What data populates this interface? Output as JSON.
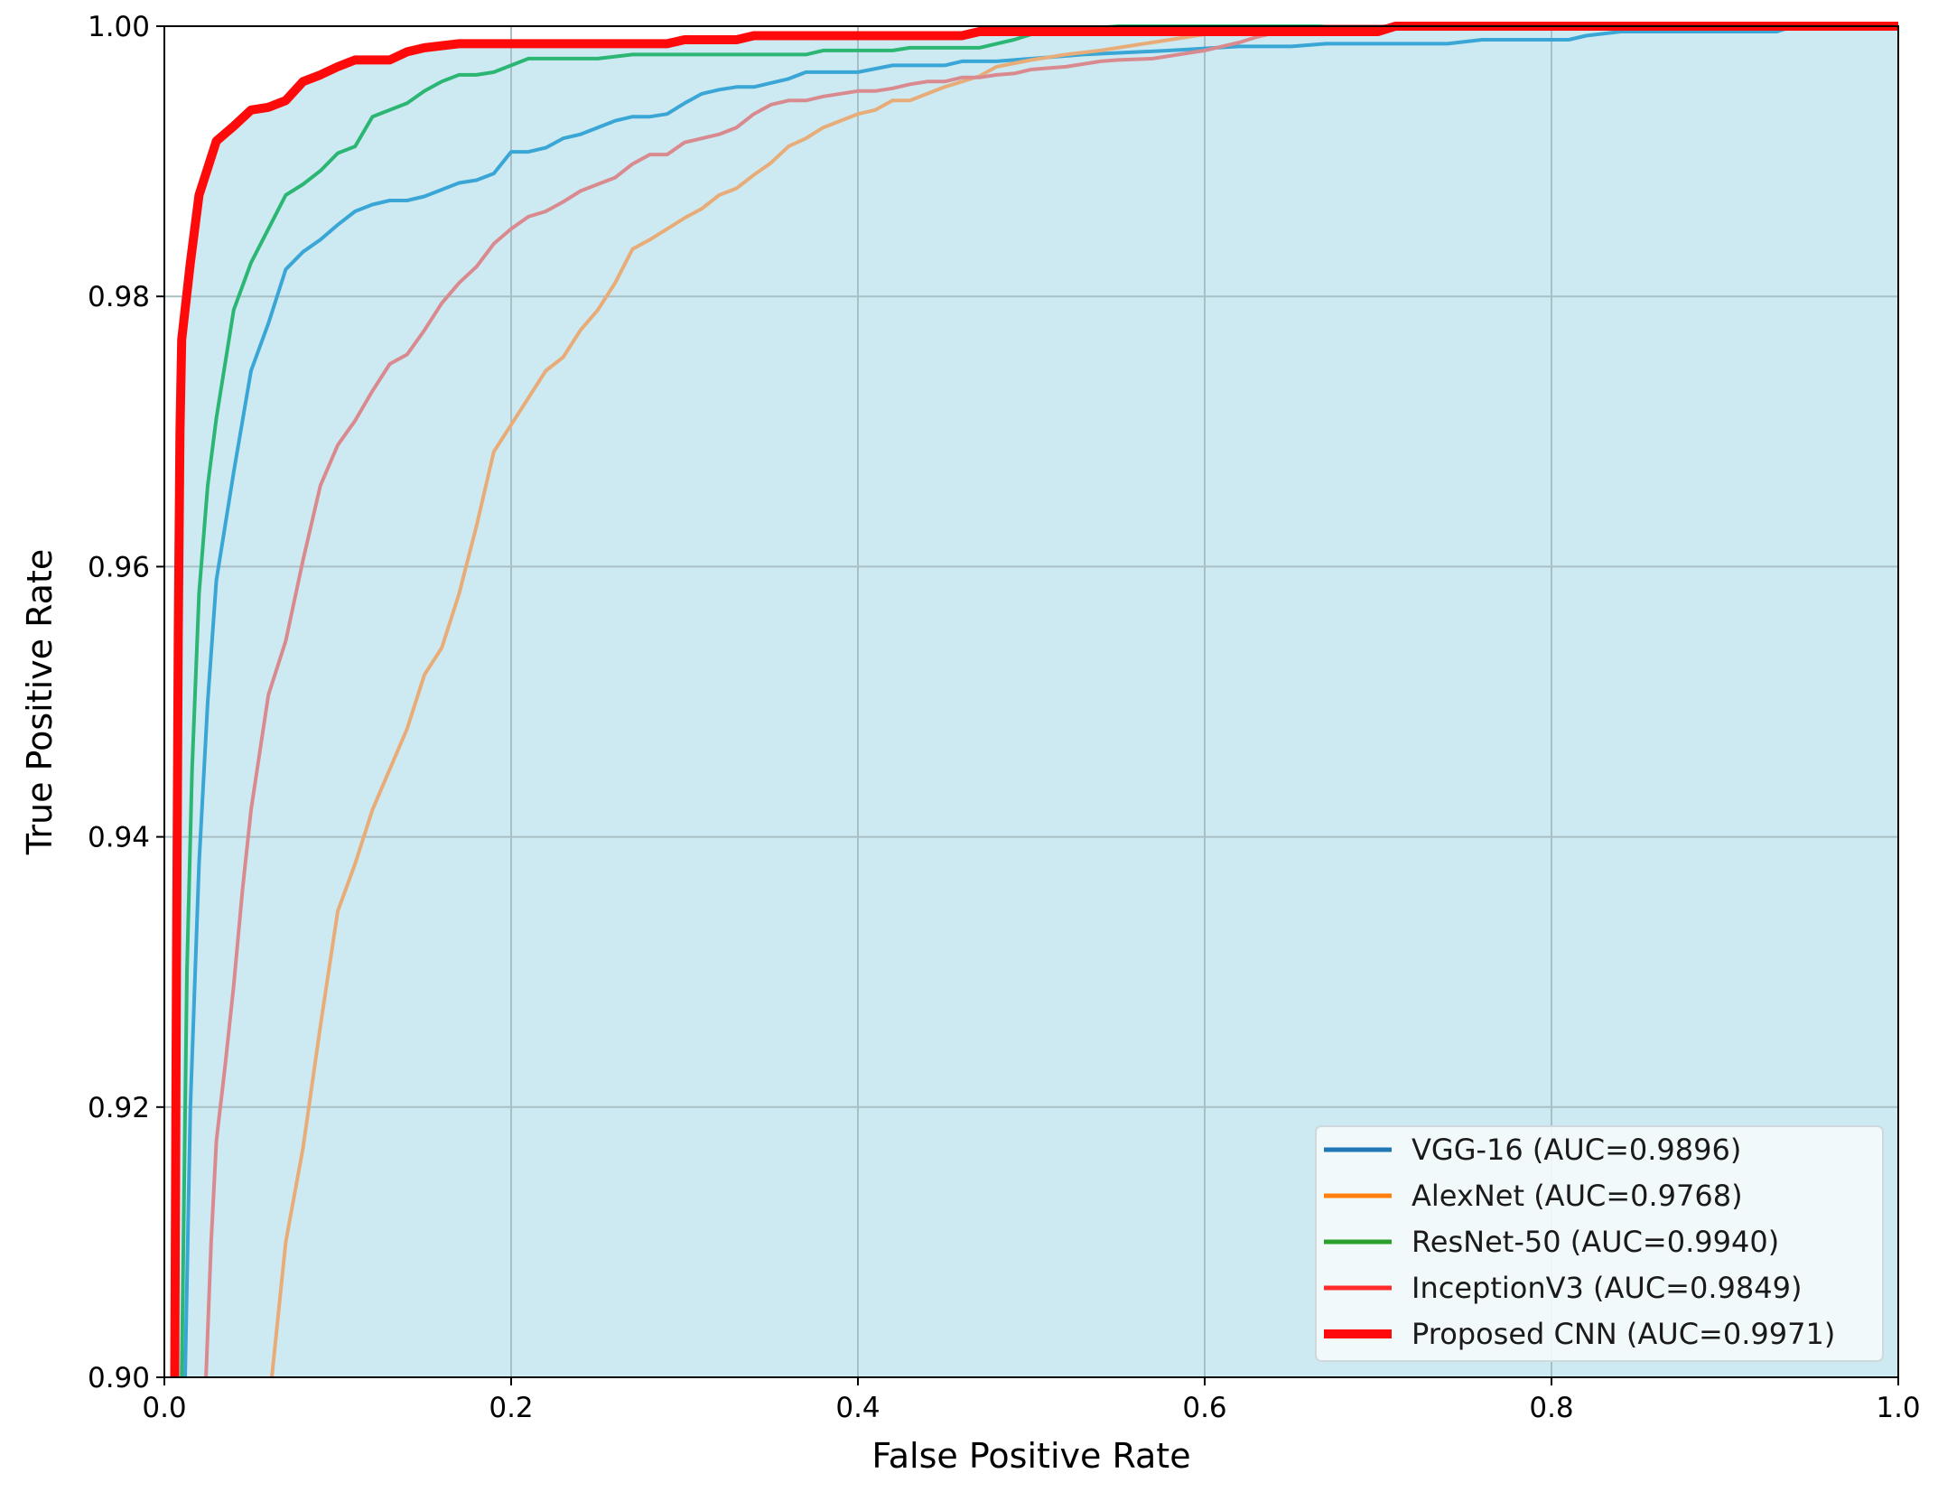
{
  "chart_data": {
    "type": "line",
    "xlabel": "False Positive Rate",
    "ylabel": "True Positive Rate",
    "xlim": [
      0.0,
      1.0
    ],
    "ylim": [
      0.9,
      1.0
    ],
    "xticks": [
      0.0,
      0.2,
      0.4,
      0.6,
      0.8,
      1.0
    ],
    "xtick_labels": [
      "0.0",
      "0.2",
      "0.4",
      "0.6",
      "0.8",
      "1.0"
    ],
    "yticks": [
      0.9,
      0.92,
      0.94,
      0.96,
      0.98,
      1.0
    ],
    "ytick_labels": [
      "0.90",
      "0.92",
      "0.94",
      "0.96",
      "0.98",
      "1.00"
    ],
    "grid": true,
    "legend_position": "lower-right",
    "fill_color": "#cdeaf2",
    "series": [
      {
        "name": "VGG-16 (AUC=0.9896)",
        "color": "#3aa6d6",
        "legend_color": "#1f77b4",
        "width": 4,
        "points": [
          [
            0.012,
            0.9
          ],
          [
            0.015,
            0.92
          ],
          [
            0.02,
            0.938
          ],
          [
            0.025,
            0.95
          ],
          [
            0.03,
            0.959
          ],
          [
            0.04,
            0.967
          ],
          [
            0.05,
            0.9745
          ],
          [
            0.06,
            0.978
          ],
          [
            0.07,
            0.982
          ],
          [
            0.08,
            0.9833
          ],
          [
            0.09,
            0.9842
          ],
          [
            0.1,
            0.9853
          ],
          [
            0.11,
            0.9863
          ],
          [
            0.12,
            0.9868
          ],
          [
            0.13,
            0.9871
          ],
          [
            0.14,
            0.9871
          ],
          [
            0.15,
            0.9874
          ],
          [
            0.16,
            0.9879
          ],
          [
            0.17,
            0.9884
          ],
          [
            0.18,
            0.9886
          ],
          [
            0.19,
            0.9891
          ],
          [
            0.2,
            0.9907
          ],
          [
            0.21,
            0.9907
          ],
          [
            0.22,
            0.991
          ],
          [
            0.23,
            0.9917
          ],
          [
            0.24,
            0.992
          ],
          [
            0.25,
            0.9925
          ],
          [
            0.26,
            0.993
          ],
          [
            0.27,
            0.9933
          ],
          [
            0.28,
            0.9933
          ],
          [
            0.29,
            0.9935
          ],
          [
            0.3,
            0.9943
          ],
          [
            0.31,
            0.995
          ],
          [
            0.32,
            0.9953
          ],
          [
            0.33,
            0.9955
          ],
          [
            0.34,
            0.9955
          ],
          [
            0.35,
            0.9958
          ],
          [
            0.36,
            0.9961
          ],
          [
            0.37,
            0.9966
          ],
          [
            0.4,
            0.9966
          ],
          [
            0.42,
            0.9971
          ],
          [
            0.45,
            0.9971
          ],
          [
            0.46,
            0.9974
          ],
          [
            0.48,
            0.9974
          ],
          [
            0.5,
            0.9976
          ],
          [
            0.53,
            0.9979
          ],
          [
            0.58,
            0.9982
          ],
          [
            0.62,
            0.9985
          ],
          [
            0.65,
            0.9985
          ],
          [
            0.67,
            0.9987
          ],
          [
            0.74,
            0.9987
          ],
          [
            0.76,
            0.999
          ],
          [
            0.81,
            0.999
          ],
          [
            0.82,
            0.9993
          ],
          [
            0.84,
            0.9996
          ],
          [
            0.93,
            0.9996
          ],
          [
            0.94,
            1.0
          ],
          [
            1.0,
            1.0
          ]
        ]
      },
      {
        "name": "AlexNet (AUC=0.9768)",
        "color": "#e8ac78",
        "legend_color": "#ff7f0e",
        "width": 4,
        "points": [
          [
            0.062,
            0.9
          ],
          [
            0.066,
            0.905
          ],
          [
            0.07,
            0.91
          ],
          [
            0.08,
            0.917
          ],
          [
            0.09,
            0.926
          ],
          [
            0.1,
            0.9345
          ],
          [
            0.11,
            0.938
          ],
          [
            0.12,
            0.942
          ],
          [
            0.13,
            0.945
          ],
          [
            0.14,
            0.948
          ],
          [
            0.15,
            0.952
          ],
          [
            0.16,
            0.954
          ],
          [
            0.17,
            0.958
          ],
          [
            0.18,
            0.963
          ],
          [
            0.19,
            0.9685
          ],
          [
            0.2,
            0.9705
          ],
          [
            0.21,
            0.9725
          ],
          [
            0.22,
            0.9745
          ],
          [
            0.23,
            0.9755
          ],
          [
            0.24,
            0.9775
          ],
          [
            0.25,
            0.979
          ],
          [
            0.26,
            0.981
          ],
          [
            0.27,
            0.9835
          ],
          [
            0.28,
            0.9842
          ],
          [
            0.29,
            0.985
          ],
          [
            0.3,
            0.9858
          ],
          [
            0.31,
            0.9865
          ],
          [
            0.32,
            0.9875
          ],
          [
            0.33,
            0.988
          ],
          [
            0.34,
            0.989
          ],
          [
            0.35,
            0.9899
          ],
          [
            0.36,
            0.9911
          ],
          [
            0.37,
            0.9917
          ],
          [
            0.38,
            0.9925
          ],
          [
            0.39,
            0.993
          ],
          [
            0.4,
            0.9935
          ],
          [
            0.41,
            0.9938
          ],
          [
            0.42,
            0.9945
          ],
          [
            0.43,
            0.9945
          ],
          [
            0.44,
            0.995
          ],
          [
            0.45,
            0.9955
          ],
          [
            0.47,
            0.9963
          ],
          [
            0.48,
            0.997
          ],
          [
            0.5,
            0.9975
          ],
          [
            0.52,
            0.9979
          ],
          [
            0.54,
            0.9982
          ],
          [
            0.56,
            0.9986
          ],
          [
            0.58,
            0.999
          ],
          [
            0.6,
            0.9994
          ],
          [
            0.62,
            0.9997
          ],
          [
            0.64,
            1.0
          ],
          [
            1.0,
            1.0
          ]
        ]
      },
      {
        "name": "ResNet-50 (AUC=0.9940)",
        "color": "#2bb673",
        "legend_color": "#2ca02c",
        "width": 4,
        "points": [
          [
            0.01,
            0.9
          ],
          [
            0.013,
            0.93
          ],
          [
            0.016,
            0.945
          ],
          [
            0.02,
            0.958
          ],
          [
            0.025,
            0.966
          ],
          [
            0.03,
            0.971
          ],
          [
            0.04,
            0.979
          ],
          [
            0.05,
            0.9825
          ],
          [
            0.06,
            0.985
          ],
          [
            0.07,
            0.9875
          ],
          [
            0.08,
            0.9883
          ],
          [
            0.09,
            0.9893
          ],
          [
            0.1,
            0.9906
          ],
          [
            0.11,
            0.9911
          ],
          [
            0.12,
            0.9933
          ],
          [
            0.13,
            0.9938
          ],
          [
            0.14,
            0.9943
          ],
          [
            0.15,
            0.9952
          ],
          [
            0.16,
            0.9959
          ],
          [
            0.17,
            0.9964
          ],
          [
            0.18,
            0.9964
          ],
          [
            0.19,
            0.9966
          ],
          [
            0.2,
            0.9971
          ],
          [
            0.21,
            0.9976
          ],
          [
            0.25,
            0.9976
          ],
          [
            0.27,
            0.9979
          ],
          [
            0.37,
            0.9979
          ],
          [
            0.38,
            0.9982
          ],
          [
            0.42,
            0.9982
          ],
          [
            0.43,
            0.9984
          ],
          [
            0.47,
            0.9984
          ],
          [
            0.48,
            0.9987
          ],
          [
            0.49,
            0.999
          ],
          [
            0.5,
            0.9994
          ],
          [
            0.52,
            0.9997
          ],
          [
            0.55,
            1.0
          ],
          [
            1.0,
            1.0
          ]
        ]
      },
      {
        "name": "InceptionV3 (AUC=0.9849)",
        "color": "#d98a8f",
        "legend_color": "#ff2a2a",
        "width": 4,
        "points": [
          [
            0.024,
            0.9
          ],
          [
            0.027,
            0.91
          ],
          [
            0.03,
            0.9175
          ],
          [
            0.035,
            0.923
          ],
          [
            0.04,
            0.929
          ],
          [
            0.045,
            0.936
          ],
          [
            0.05,
            0.942
          ],
          [
            0.06,
            0.9505
          ],
          [
            0.07,
            0.9545
          ],
          [
            0.08,
            0.9605
          ],
          [
            0.09,
            0.966
          ],
          [
            0.1,
            0.969
          ],
          [
            0.11,
            0.9708
          ],
          [
            0.12,
            0.973
          ],
          [
            0.13,
            0.975
          ],
          [
            0.14,
            0.9757
          ],
          [
            0.15,
            0.9775
          ],
          [
            0.16,
            0.9795
          ],
          [
            0.17,
            0.981
          ],
          [
            0.18,
            0.9822
          ],
          [
            0.19,
            0.9839
          ],
          [
            0.2,
            0.985
          ],
          [
            0.21,
            0.9859
          ],
          [
            0.22,
            0.9863
          ],
          [
            0.23,
            0.987
          ],
          [
            0.24,
            0.9878
          ],
          [
            0.25,
            0.9883
          ],
          [
            0.26,
            0.9888
          ],
          [
            0.27,
            0.9898
          ],
          [
            0.28,
            0.9905
          ],
          [
            0.29,
            0.9905
          ],
          [
            0.3,
            0.9914
          ],
          [
            0.31,
            0.9917
          ],
          [
            0.32,
            0.992
          ],
          [
            0.33,
            0.9925
          ],
          [
            0.34,
            0.9935
          ],
          [
            0.35,
            0.9942
          ],
          [
            0.36,
            0.9945
          ],
          [
            0.37,
            0.9945
          ],
          [
            0.38,
            0.9948
          ],
          [
            0.39,
            0.995
          ],
          [
            0.4,
            0.9952
          ],
          [
            0.41,
            0.9952
          ],
          [
            0.42,
            0.9954
          ],
          [
            0.43,
            0.9957
          ],
          [
            0.44,
            0.9959
          ],
          [
            0.45,
            0.9959
          ],
          [
            0.46,
            0.9962
          ],
          [
            0.47,
            0.9962
          ],
          [
            0.48,
            0.9964
          ],
          [
            0.49,
            0.9965
          ],
          [
            0.5,
            0.9968
          ],
          [
            0.51,
            0.9969
          ],
          [
            0.52,
            0.997
          ],
          [
            0.53,
            0.9972
          ],
          [
            0.54,
            0.9974
          ],
          [
            0.55,
            0.9975
          ],
          [
            0.57,
            0.9976
          ],
          [
            0.58,
            0.9978
          ],
          [
            0.59,
            0.998
          ],
          [
            0.6,
            0.9982
          ],
          [
            0.61,
            0.9985
          ],
          [
            0.62,
            0.9988
          ],
          [
            0.63,
            0.9992
          ],
          [
            0.64,
            0.9995
          ],
          [
            0.66,
            0.9998
          ],
          [
            0.67,
            1.0
          ],
          [
            1.0,
            1.0
          ]
        ]
      },
      {
        "name": "Proposed CNN (AUC=0.9971)",
        "color": "#ff0a0a",
        "legend_color": "#ff0a0a",
        "width": 10,
        "points": [
          [
            0.006,
            0.9
          ],
          [
            0.007,
            0.93
          ],
          [
            0.008,
            0.955
          ],
          [
            0.009,
            0.97
          ],
          [
            0.01,
            0.9768
          ],
          [
            0.015,
            0.9825
          ],
          [
            0.02,
            0.9875
          ],
          [
            0.03,
            0.9915
          ],
          [
            0.04,
            0.9926
          ],
          [
            0.05,
            0.9938
          ],
          [
            0.06,
            0.994
          ],
          [
            0.07,
            0.9945
          ],
          [
            0.08,
            0.9959
          ],
          [
            0.09,
            0.9964
          ],
          [
            0.1,
            0.997
          ],
          [
            0.11,
            0.9975
          ],
          [
            0.13,
            0.9975
          ],
          [
            0.14,
            0.9981
          ],
          [
            0.15,
            0.9984
          ],
          [
            0.17,
            0.9987
          ],
          [
            0.29,
            0.9987
          ],
          [
            0.3,
            0.999
          ],
          [
            0.33,
            0.999
          ],
          [
            0.34,
            0.9993
          ],
          [
            0.46,
            0.9993
          ],
          [
            0.47,
            0.9996
          ],
          [
            0.7,
            0.9996
          ],
          [
            0.71,
            1.0
          ],
          [
            1.0,
            1.0
          ]
        ]
      }
    ]
  }
}
